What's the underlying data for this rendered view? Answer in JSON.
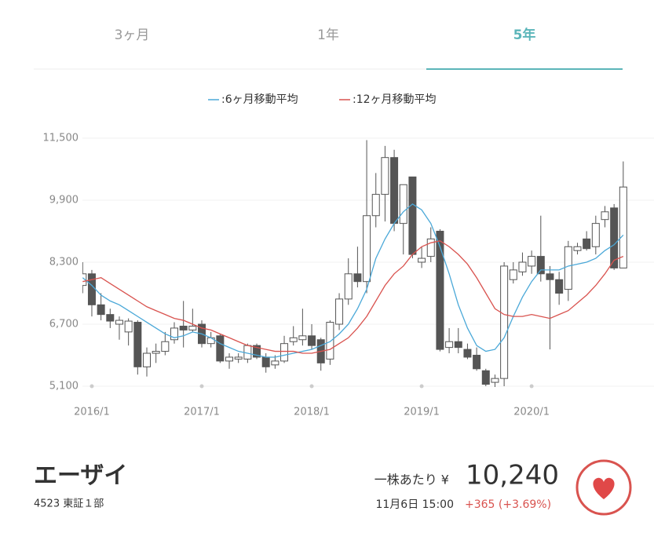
{
  "tabs": [
    {
      "label": "3ヶ月",
      "active": false
    },
    {
      "label": "1年",
      "active": false
    },
    {
      "label": "5年",
      "active": true
    }
  ],
  "chart_data": {
    "type": "candlestick",
    "x": [
      "2015/12",
      "2016/1",
      "2016/2",
      "2016/3",
      "2016/4",
      "2016/5",
      "2016/6",
      "2016/7",
      "2016/8",
      "2016/9",
      "2016/10",
      "2016/11",
      "2016/12",
      "2017/1",
      "2017/2",
      "2017/3",
      "2017/4",
      "2017/5",
      "2017/6",
      "2017/7",
      "2017/8",
      "2017/9",
      "2017/10",
      "2017/11",
      "2017/12",
      "2018/1",
      "2018/2",
      "2018/3",
      "2018/4",
      "2018/5",
      "2018/6",
      "2018/7",
      "2018/8",
      "2018/9",
      "2018/10",
      "2018/11",
      "2018/12",
      "2019/1",
      "2019/2",
      "2019/3",
      "2019/4",
      "2019/5",
      "2019/6",
      "2019/7",
      "2019/8",
      "2019/9",
      "2019/10",
      "2019/11",
      "2019/12",
      "2020/1",
      "2020/2",
      "2020/3",
      "2020/4",
      "2020/5",
      "2020/6",
      "2020/7",
      "2020/8",
      "2020/9",
      "2020/10",
      "2020/11"
    ],
    "open": [
      7700,
      8000,
      7200,
      6950,
      6700,
      6500,
      6750,
      5600,
      5950,
      6000,
      6300,
      6650,
      6550,
      6700,
      6200,
      6400,
      5750,
      5800,
      5800,
      6150,
      5850,
      5650,
      5750,
      6250,
      6300,
      6400,
      6300,
      5800,
      6700,
      7350,
      8000,
      7800,
      9500,
      10050,
      11000,
      9300,
      10500,
      8300,
      8450,
      9100,
      6100,
      6250,
      6050,
      5900,
      5500,
      5200,
      5300,
      7850,
      8050,
      8200,
      8450,
      8000,
      7850,
      7600,
      8600,
      8900,
      8700,
      9400,
      9700,
      8150
    ],
    "high": [
      8300,
      8100,
      7500,
      7100,
      6900,
      6850,
      6800,
      6100,
      6200,
      6500,
      6750,
      7300,
      7100,
      6800,
      6500,
      6450,
      5950,
      5950,
      6200,
      6200,
      5950,
      5900,
      6400,
      6650,
      7100,
      6700,
      6350,
      6800,
      7500,
      8400,
      8700,
      11450,
      10600,
      11300,
      11200,
      10300,
      10500,
      8700,
      9200,
      9150,
      6600,
      6600,
      6200,
      6100,
      5550,
      5400,
      8300,
      8300,
      8550,
      8600,
      9500,
      8200,
      8050,
      8850,
      8800,
      9100,
      9500,
      9750,
      9800,
      10900
    ],
    "low": [
      7500,
      6900,
      6800,
      6600,
      6300,
      6150,
      5400,
      5350,
      5700,
      5900,
      6200,
      6100,
      6500,
      6100,
      6100,
      5700,
      5550,
      5700,
      5700,
      5800,
      5450,
      5550,
      5700,
      6150,
      6150,
      6050,
      5500,
      5650,
      6550,
      7200,
      7650,
      7500,
      9200,
      9350,
      9100,
      8500,
      8400,
      8150,
      8300,
      6000,
      5950,
      5950,
      5800,
      5500,
      5100,
      5080,
      5100,
      7750,
      7950,
      8000,
      7800,
      6050,
      7200,
      7300,
      8500,
      8600,
      8500,
      9200,
      8100,
      8150
    ],
    "close": [
      8000,
      7200,
      6950,
      6780,
      6800,
      6780,
      5600,
      5950,
      6000,
      6250,
      6600,
      6550,
      6650,
      6200,
      6350,
      5750,
      5850,
      5850,
      6150,
      5850,
      5600,
      5750,
      6200,
      6350,
      6400,
      6150,
      5700,
      6750,
      7350,
      8000,
      7800,
      9500,
      10050,
      11000,
      9300,
      10300,
      8500,
      8400,
      8900,
      6050,
      6250,
      6100,
      5850,
      5550,
      5150,
      5300,
      8200,
      8100,
      8300,
      8450,
      8000,
      7850,
      7500,
      8700,
      8700,
      8650,
      9300,
      9600,
      8150,
      10240
    ],
    "up_color": "#ffffff",
    "down_color": "#555555",
    "edge_color": "#555555",
    "series": [
      {
        "name": ":6ヶ月移動平均",
        "color": "#4aa8d8",
        "values": [
          7900,
          7700,
          7450,
          7300,
          7200,
          7050,
          6900,
          6750,
          6600,
          6450,
          6350,
          6400,
          6500,
          6450,
          6350,
          6200,
          6100,
          6000,
          5950,
          5900,
          5850,
          5850,
          5900,
          5950,
          6000,
          6050,
          6150,
          6250,
          6450,
          6700,
          7100,
          7600,
          8400,
          8900,
          9300,
          9600,
          9800,
          9650,
          9300,
          8700,
          8000,
          7200,
          6600,
          6150,
          6000,
          6050,
          6350,
          6900,
          7400,
          7800,
          8100,
          8100,
          8100,
          8200,
          8250,
          8300,
          8400,
          8600,
          8750,
          9000
        ]
      },
      {
        "name": ":12ヶ月移動平均",
        "color": "#d9534f",
        "values": [
          7800,
          7850,
          7900,
          7750,
          7600,
          7450,
          7300,
          7150,
          7050,
          6950,
          6850,
          6800,
          6700,
          6600,
          6550,
          6450,
          6350,
          6250,
          6150,
          6100,
          6050,
          6000,
          6000,
          6000,
          5950,
          5950,
          6000,
          6050,
          6200,
          6350,
          6600,
          6900,
          7300,
          7700,
          8000,
          8200,
          8500,
          8700,
          8800,
          8850,
          8700,
          8500,
          8250,
          7900,
          7500,
          7100,
          6950,
          6900,
          6900,
          6950,
          6900,
          6850,
          6950,
          7050,
          7250,
          7450,
          7700,
          8000,
          8350,
          8450
        ]
      }
    ],
    "ylim": [
      5100,
      11500
    ],
    "yticks": [
      {
        "value": 5100,
        "label": "5,100"
      },
      {
        "value": 6700,
        "label": "6,700"
      },
      {
        "value": 8300,
        "label": "8,300"
      },
      {
        "value": 9900,
        "label": "9,900"
      },
      {
        "value": 11500,
        "label": "11,500"
      }
    ],
    "xticks": [
      "2016/1",
      "2017/1",
      "2018/1",
      "2019/1",
      "2020/1"
    ],
    "grid": true
  },
  "stock": {
    "name": "エーザイ",
    "code": "4523 東証１部",
    "price_label": "一株あたり ¥",
    "price": "10,240",
    "time": "11月6日 15:00",
    "change": "+365 (+3.69%)"
  }
}
